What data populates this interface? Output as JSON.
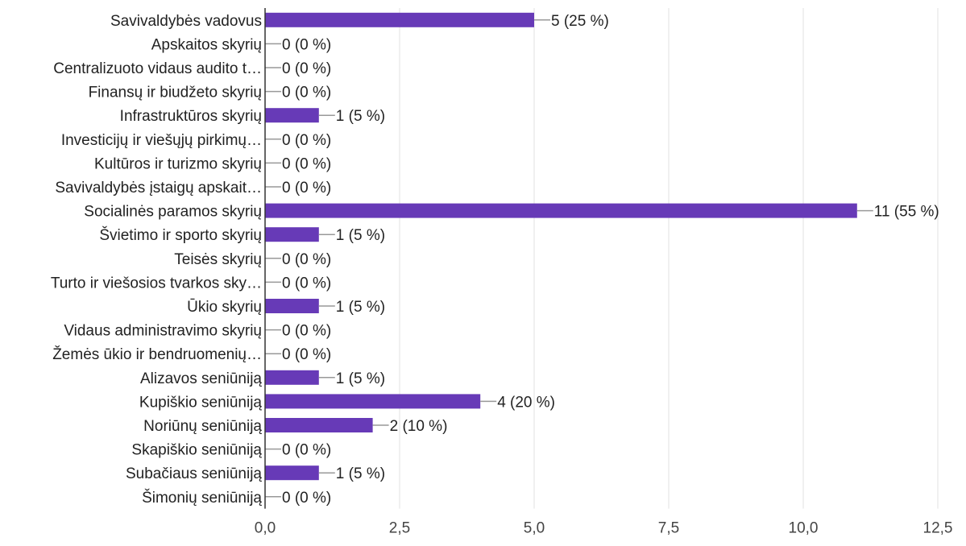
{
  "chart_data": {
    "type": "bar",
    "orientation": "horizontal",
    "title": "",
    "xlabel": "",
    "ylabel": "",
    "xlim": [
      0,
      12.5
    ],
    "x_ticks": [
      "0,0",
      "2,5",
      "5,0",
      "7,5",
      "10,0",
      "12,5"
    ],
    "x_tick_values": [
      0,
      2.5,
      5,
      7.5,
      10,
      12.5
    ],
    "grid": true,
    "bar_color": "#673ab7",
    "categories": [
      "Savivaldybės vadovus",
      "Apskaitos skyrių",
      "Centralizuoto vidaus audito t…",
      "Finansų ir biudžeto skyrių",
      "Infrastruktūros skyrių",
      "Investicijų ir viešųjų pirkimų…",
      "Kultūros ir turizmo skyrių",
      "Savivaldybės įstaigų apskait…",
      "Socialinės paramos skyrių",
      "Švietimo ir sporto skyrių",
      "Teisės skyrių",
      "Turto ir viešosios tvarkos sky…",
      "Ūkio skyrių",
      "Vidaus administravimo skyrių",
      "Žemės ūkio ir bendruomenių…",
      "Alizavos seniūniją",
      "Kupiškio seniūniją",
      "Noriūnų seniūniją",
      "Skapiškio seniūniją",
      "Subačiaus seniūniją",
      "Šimonių seniūniją"
    ],
    "values": [
      5,
      0,
      0,
      0,
      1,
      0,
      0,
      0,
      11,
      1,
      0,
      0,
      1,
      0,
      0,
      1,
      4,
      2,
      0,
      1,
      0
    ],
    "value_labels": [
      "5 (25 %)",
      "0 (0 %)",
      "0 (0 %)",
      "0 (0 %)",
      "1 (5 %)",
      "0 (0 %)",
      "0 (0 %)",
      "0 (0 %)",
      "11 (55 %)",
      "1 (5 %)",
      "0 (0 %)",
      "0 (0 %)",
      "1 (5 %)",
      "0 (0 %)",
      "0 (0 %)",
      "1 (5 %)",
      "4 (20 %)",
      "2 (10 %)",
      "0 (0 %)",
      "1 (5 %)",
      "0 (0 %)"
    ]
  }
}
